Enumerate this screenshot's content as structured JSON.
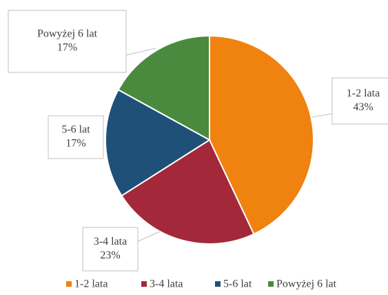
{
  "chart_data": {
    "type": "pie",
    "categories": [
      "1-2 lata",
      "3-4 lata",
      "5-6 lat",
      "Powyżej 6 lat"
    ],
    "values": [
      43,
      23,
      17,
      17
    ],
    "value_labels": [
      "43%",
      "23%",
      "17%",
      "17%"
    ],
    "colors": [
      "#f0820f",
      "#a3283a",
      "#1f5078",
      "#4a8a3f"
    ],
    "legend": "bottom"
  }
}
